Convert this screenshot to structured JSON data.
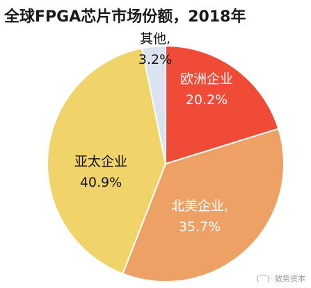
{
  "chart_data": {
    "type": "pie",
    "title": "全球FPGA芯片市场份额，2018年",
    "slices": [
      {
        "label": "欧洲企业",
        "value": 20.2,
        "value_text": "20.2%",
        "color": "#EF4B37",
        "label_color": "#ffffff"
      },
      {
        "label": "北美企业,",
        "value": 35.7,
        "value_text": "35.7%",
        "color": "#EEA164",
        "label_color": "#ffffff"
      },
      {
        "label": "亚太企业",
        "value": 40.9,
        "value_text": "40.9%",
        "color": "#F1D469",
        "label_color": "#111111"
      },
      {
        "label": "其他,",
        "value": 3.2,
        "value_text": "3.2%",
        "color": "#DCE3F0",
        "label_color": "#111111"
      }
    ]
  },
  "watermark": "(⌒)· 致势资本"
}
